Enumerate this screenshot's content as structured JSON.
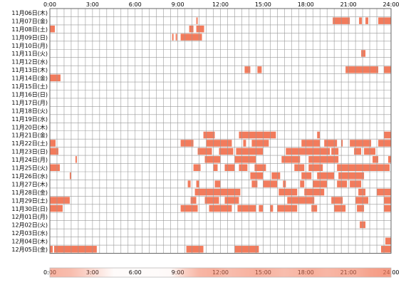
{
  "chart_data": {
    "type": "heatmap",
    "title": "",
    "xlabel": "",
    "ylabel": "",
    "x_range_hours": [
      0,
      24
    ],
    "x_ticks": [
      "0:00",
      "3:00",
      "6:00",
      "9:00",
      "12:00",
      "15:00",
      "18:00",
      "21:00",
      "24:00"
    ],
    "grid": true,
    "colors": {
      "bar": "#f27b5c",
      "bar_light": "#fbd3c4",
      "grid": "#999999",
      "border": "#666666"
    },
    "rows": [
      {
        "label": "11月06日(木)",
        "intervals": []
      },
      {
        "label": "11月07日(金)",
        "intervals": [
          [
            10.3,
            10.4
          ],
          [
            19.9,
            21.1
          ],
          [
            21.75,
            21.95
          ],
          [
            22.2,
            22.4
          ],
          [
            23.1,
            24.0
          ]
        ]
      },
      {
        "label": "11月08日(土)",
        "intervals": [
          [
            0.0,
            0.35
          ],
          [
            9.8,
            10.1
          ],
          [
            10.3,
            10.85
          ]
        ]
      },
      {
        "label": "11月09日(日)",
        "intervals": [
          [
            8.6,
            8.7
          ],
          [
            8.85,
            8.95
          ],
          [
            9.2,
            10.7
          ]
        ]
      },
      {
        "label": "11月10日(月)",
        "intervals": []
      },
      {
        "label": "11月11日(火)",
        "intervals": [
          [
            21.9,
            22.2
          ]
        ]
      },
      {
        "label": "11月12日(水)",
        "intervals": []
      },
      {
        "label": "11月13日(木)",
        "intervals": [
          [
            13.7,
            14.1
          ],
          [
            14.6,
            14.9
          ],
          [
            20.8,
            23.1
          ],
          [
            23.5,
            24.0
          ]
        ]
      },
      {
        "label": "11月14日(金)",
        "intervals": [
          [
            0.0,
            0.75
          ]
        ]
      },
      {
        "label": "11月15日(土)",
        "intervals": []
      },
      {
        "label": "11月16日(日)",
        "intervals": []
      },
      {
        "label": "11月17日(月)",
        "intervals": []
      },
      {
        "label": "11月18日(火)",
        "intervals": []
      },
      {
        "label": "11月19日(水)",
        "intervals": []
      },
      {
        "label": "11月20日(木)",
        "intervals": []
      },
      {
        "label": "11月21日(金)",
        "intervals": [
          [
            10.8,
            11.6
          ],
          [
            13.3,
            15.9
          ],
          [
            18.8,
            19.0
          ],
          [
            23.5,
            24.0
          ]
        ]
      },
      {
        "label": "11月22日(土)",
        "intervals": [
          [
            0.0,
            0.4
          ],
          [
            9.2,
            10.1
          ],
          [
            11.0,
            12.8
          ],
          [
            13.6,
            13.8
          ],
          [
            14.2,
            15.4
          ],
          [
            17.7,
            19.0
          ],
          [
            19.3,
            20.2
          ],
          [
            20.5,
            20.6
          ],
          [
            21.1,
            22.6
          ],
          [
            23.1,
            24.0
          ]
        ]
      },
      {
        "label": "11月23日(日)",
        "intervals": [
          [
            0.0,
            0.6
          ],
          [
            10.4,
            11.4
          ],
          [
            11.9,
            12.9
          ],
          [
            13.1,
            15.0
          ],
          [
            16.6,
            19.7
          ],
          [
            19.8,
            20.3
          ],
          [
            21.4,
            21.9
          ],
          [
            22.1,
            22.9
          ]
        ]
      },
      {
        "label": "11月24日(月)",
        "intervals": [
          [
            1.8,
            1.9
          ],
          [
            10.9,
            12.0
          ],
          [
            13.0,
            14.5
          ],
          [
            16.3,
            17.6
          ],
          [
            18.2,
            20.3
          ],
          [
            22.7,
            23.1
          ],
          [
            23.8,
            24.0
          ]
        ]
      },
      {
        "label": "11月25日(火)",
        "intervals": [
          [
            0.0,
            0.7
          ],
          [
            10.1,
            10.6
          ],
          [
            11.5,
            11.8
          ],
          [
            12.3,
            13.0
          ],
          [
            13.3,
            13.9
          ],
          [
            14.4,
            15.2
          ],
          [
            17.2,
            17.9
          ],
          [
            18.2,
            19.2
          ],
          [
            20.2,
            23.9
          ]
        ]
      },
      {
        "label": "11月26日(水)",
        "intervals": [
          [
            1.4,
            1.5
          ],
          [
            14.1,
            15.0
          ],
          [
            15.6,
            16.2
          ],
          [
            17.7,
            18.4
          ],
          [
            18.8,
            20.0
          ],
          [
            20.3,
            22.1
          ]
        ]
      },
      {
        "label": "11月27日(木)",
        "intervals": [
          [
            9.7,
            9.9
          ],
          [
            10.3,
            10.5
          ],
          [
            11.6,
            12.0
          ],
          [
            14.2,
            14.6
          ],
          [
            15.0,
            16.0
          ],
          [
            16.4,
            16.6
          ],
          [
            17.6,
            17.9
          ],
          [
            18.5,
            19.5
          ],
          [
            20.2,
            20.9
          ],
          [
            21.1,
            21.9
          ]
        ]
      },
      {
        "label": "11月28日(金)",
        "intervals": [
          [
            10.2,
            13.4
          ],
          [
            16.1,
            17.4
          ],
          [
            17.9,
            19.3
          ],
          [
            21.7,
            22.2
          ],
          [
            23.0,
            24.0
          ]
        ]
      },
      {
        "label": "11月29日(土)",
        "intervals": [
          [
            0.0,
            1.4
          ],
          [
            9.9,
            10.3
          ],
          [
            10.9,
            11.9
          ],
          [
            12.3,
            13.3
          ],
          [
            16.7,
            18.6
          ],
          [
            19.8,
            20.6
          ],
          [
            21.5,
            22.4
          ],
          [
            23.5,
            24.0
          ]
        ]
      },
      {
        "label": "11月30日(日)",
        "intervals": [
          [
            0.0,
            0.9
          ],
          [
            9.2,
            10.4
          ],
          [
            11.2,
            12.8
          ],
          [
            13.2,
            14.5
          ],
          [
            14.7,
            15.0
          ],
          [
            15.5,
            15.7
          ],
          [
            16.0,
            17.4
          ],
          [
            18.4,
            18.8
          ],
          [
            20.0,
            20.8
          ],
          [
            21.6,
            22.1
          ],
          [
            23.5,
            24.0
          ]
        ]
      },
      {
        "label": "12月01日(月)",
        "intervals": []
      },
      {
        "label": "12月02日(火)",
        "intervals": [
          [
            21.8,
            22.2
          ]
        ]
      },
      {
        "label": "12月03日(水)",
        "intervals": []
      },
      {
        "label": "12月04日(木)",
        "intervals": [
          [
            23.6,
            24.0
          ]
        ]
      },
      {
        "label": "12月05日(金)",
        "intervals": [
          [
            0.0,
            0.2
          ],
          [
            0.3,
            3.3
          ],
          [
            9.6,
            10.8
          ],
          [
            13.0,
            14.7
          ],
          [
            23.3,
            24.0
          ]
        ]
      }
    ],
    "summary_strip": {
      "note_visible": "",
      "intensity_by_hour": [
        0.55,
        0.5,
        0.35,
        0.2,
        0.03,
        0.02,
        0.02,
        0.03,
        0.05,
        0.35,
        0.55,
        0.6,
        0.5,
        0.55,
        0.6,
        0.55,
        0.5,
        0.55,
        0.6,
        0.55,
        0.6,
        0.6,
        0.7,
        0.75
      ]
    }
  }
}
